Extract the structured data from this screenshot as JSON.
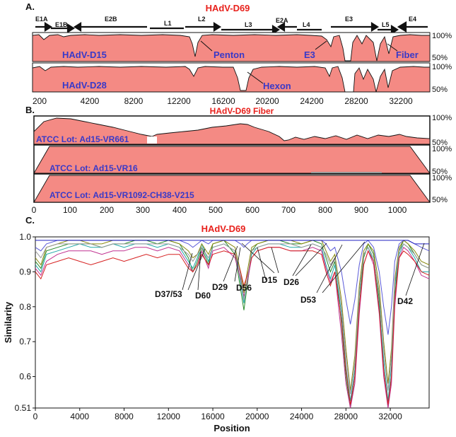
{
  "colors": {
    "fill": "#f48a84",
    "title": "#e8211c",
    "seq": "#3939c8",
    "ink": "#111111"
  },
  "panel_a": {
    "letter": "A.",
    "title": "HAdV-D69",
    "genes": [
      "E1A",
      "E1B",
      "E2B",
      "L1",
      "L2",
      "L3",
      "E2A",
      "L4",
      "E3",
      "L5",
      "E4"
    ],
    "tracks": [
      {
        "name": "HAdV-D15",
        "notes": [
          "Penton",
          "E3",
          "Fiber"
        ],
        "top": "100%",
        "bottom": "50%"
      },
      {
        "name": "HAdV-D28",
        "notes": [
          "Hexon"
        ],
        "top": "100%",
        "bottom": "50%"
      }
    ],
    "ticks": [
      "200",
      "4200",
      "8200",
      "12200",
      "16200",
      "20200",
      "24200",
      "28200",
      "32200"
    ]
  },
  "panel_b": {
    "letter": "B.",
    "title": "HAdV-D69 Fiber",
    "tracks": [
      {
        "name": "ATCC Lot: Ad15-VR661",
        "top": "100%",
        "bottom": "50%"
      },
      {
        "name": "ATCC Lot: Ad15-VR16",
        "top": "100%",
        "bottom": "50%"
      },
      {
        "name": "ATCC Lot: Ad15-VR1092-CH38-V215",
        "top": "100%",
        "bottom": "50%"
      }
    ],
    "ticks": [
      "0",
      "100",
      "200",
      "300",
      "400",
      "500",
      "600",
      "700",
      "800",
      "900",
      "1000"
    ]
  },
  "chart_data": {
    "type": "line",
    "letter": "C.",
    "title": "HAdV-D69",
    "xlabel": "Position",
    "ylabel": "Similarity",
    "xlim": [
      0,
      35500
    ],
    "ylim": [
      0.51,
      1.0
    ],
    "x_ticks": [
      "0",
      "4000",
      "8000",
      "12000",
      "16000",
      "20000",
      "24000",
      "28000",
      "32000"
    ],
    "y_ticks": [
      "1.0",
      "0.9",
      "0.8",
      "0.7",
      "0.6",
      "0.51"
    ],
    "annotations": [
      "D37/53",
      "D60",
      "D29",
      "D56",
      "D15",
      "D26",
      "D53",
      "D42"
    ],
    "x": [
      0,
      500,
      1000,
      2000,
      3000,
      4000,
      5000,
      6000,
      7000,
      8000,
      9000,
      10000,
      11000,
      12000,
      13000,
      13800,
      14200,
      14600,
      15000,
      15600,
      16000,
      17000,
      18000,
      18500,
      18800,
      19100,
      19500,
      20000,
      21000,
      22000,
      23000,
      24000,
      25000,
      25800,
      26200,
      26600,
      27000,
      27600,
      28000,
      28400,
      28800,
      29200,
      29600,
      30000,
      30500,
      31000,
      31400,
      31800,
      32100,
      32400,
      32800,
      33200,
      33600,
      34200,
      34800,
      35500
    ],
    "series": [
      {
        "values": [
          0.93,
          0.91,
          0.96,
          0.97,
          0.98,
          0.98,
          0.98,
          0.97,
          0.98,
          0.98,
          0.99,
          0.99,
          0.98,
          0.99,
          0.98,
          0.94,
          0.9,
          0.93,
          0.97,
          0.92,
          0.98,
          0.99,
          0.95,
          0.85,
          0.79,
          0.86,
          0.96,
          0.98,
          0.99,
          0.99,
          0.98,
          0.98,
          0.99,
          0.98,
          0.94,
          0.9,
          0.93,
          0.75,
          0.6,
          0.51,
          0.6,
          0.8,
          0.94,
          0.98,
          0.95,
          0.82,
          0.62,
          0.51,
          0.6,
          0.83,
          0.96,
          0.99,
          0.98,
          0.95,
          0.92,
          0.91
        ],
        "color": "#2a8a2a"
      },
      {
        "values": [
          0.92,
          0.9,
          0.95,
          0.96,
          0.97,
          0.98,
          0.97,
          0.97,
          0.98,
          0.97,
          0.98,
          0.98,
          0.97,
          0.98,
          0.97,
          0.93,
          0.91,
          0.94,
          0.98,
          0.93,
          0.97,
          0.98,
          0.96,
          0.87,
          0.81,
          0.88,
          0.95,
          0.97,
          0.98,
          0.98,
          0.97,
          0.97,
          0.98,
          0.97,
          0.92,
          0.88,
          0.92,
          0.78,
          0.63,
          0.53,
          0.62,
          0.83,
          0.95,
          0.97,
          0.93,
          0.8,
          0.65,
          0.53,
          0.63,
          0.86,
          0.95,
          0.98,
          0.97,
          0.94,
          0.9,
          0.9
        ],
        "color": "#1fa8a8"
      },
      {
        "values": [
          0.94,
          0.92,
          0.97,
          0.98,
          0.99,
          0.99,
          0.98,
          0.98,
          0.99,
          0.99,
          0.99,
          0.99,
          0.99,
          0.99,
          0.98,
          0.96,
          0.94,
          0.95,
          0.98,
          0.95,
          0.98,
          0.99,
          0.97,
          0.9,
          0.84,
          0.9,
          0.97,
          0.98,
          0.99,
          0.99,
          0.99,
          0.98,
          0.99,
          0.99,
          0.96,
          0.93,
          0.95,
          0.82,
          0.68,
          0.56,
          0.66,
          0.86,
          0.96,
          0.98,
          0.96,
          0.86,
          0.7,
          0.58,
          0.68,
          0.88,
          0.97,
          0.99,
          0.98,
          0.96,
          0.93,
          0.92
        ],
        "color": "#8a8a10"
      },
      {
        "values": [
          0.91,
          0.89,
          0.93,
          0.95,
          0.96,
          0.96,
          0.96,
          0.95,
          0.96,
          0.96,
          0.97,
          0.97,
          0.96,
          0.97,
          0.96,
          0.92,
          0.9,
          0.92,
          0.96,
          0.91,
          0.96,
          0.97,
          0.94,
          0.88,
          0.83,
          0.87,
          0.94,
          0.96,
          0.97,
          0.97,
          0.96,
          0.96,
          0.97,
          0.96,
          0.91,
          0.87,
          0.9,
          0.72,
          0.58,
          0.51,
          0.58,
          0.78,
          0.92,
          0.96,
          0.92,
          0.78,
          0.6,
          0.51,
          0.58,
          0.8,
          0.94,
          0.97,
          0.96,
          0.93,
          0.89,
          0.88
        ],
        "color": "#c03090"
      },
      {
        "values": [
          0.97,
          0.96,
          0.98,
          0.99,
          0.99,
          0.99,
          0.99,
          0.99,
          0.99,
          0.99,
          0.99,
          0.99,
          0.99,
          0.99,
          0.99,
          0.98,
          0.97,
          0.98,
          0.99,
          0.98,
          0.99,
          0.99,
          0.99,
          0.98,
          0.97,
          0.98,
          0.99,
          0.99,
          0.99,
          0.99,
          0.99,
          0.99,
          0.99,
          0.99,
          0.98,
          0.96,
          0.97,
          0.9,
          0.82,
          0.75,
          0.82,
          0.92,
          0.98,
          0.99,
          0.97,
          0.9,
          0.8,
          0.72,
          0.8,
          0.93,
          0.98,
          0.99,
          0.99,
          0.98,
          0.97,
          0.96
        ],
        "color": "#5a5ad8"
      },
      {
        "values": [
          0.9,
          0.88,
          0.92,
          0.93,
          0.94,
          0.93,
          0.92,
          0.93,
          0.94,
          0.93,
          0.94,
          0.95,
          0.94,
          0.95,
          0.95,
          0.91,
          0.9,
          0.92,
          0.95,
          0.92,
          0.95,
          0.96,
          0.95,
          0.9,
          0.86,
          0.89,
          0.94,
          0.96,
          0.97,
          0.97,
          0.96,
          0.96,
          0.96,
          0.95,
          0.9,
          0.86,
          0.9,
          0.76,
          0.62,
          0.52,
          0.6,
          0.8,
          0.92,
          0.96,
          0.93,
          0.79,
          0.62,
          0.52,
          0.6,
          0.82,
          0.94,
          0.96,
          0.95,
          0.93,
          0.9,
          0.89
        ],
        "color": "#d62020"
      },
      {
        "values": [
          0.96,
          0.94,
          0.97,
          0.98,
          0.98,
          0.98,
          0.98,
          0.97,
          0.98,
          0.98,
          0.98,
          0.98,
          0.98,
          0.98,
          0.97,
          0.95,
          0.93,
          0.95,
          0.97,
          0.94,
          0.97,
          0.98,
          0.96,
          0.89,
          0.82,
          0.88,
          0.96,
          0.97,
          0.98,
          0.98,
          0.98,
          0.97,
          0.98,
          0.97,
          0.95,
          0.92,
          0.94,
          0.8,
          0.66,
          0.55,
          0.64,
          0.84,
          0.95,
          0.97,
          0.94,
          0.84,
          0.68,
          0.56,
          0.66,
          0.87,
          0.96,
          0.98,
          0.97,
          0.95,
          0.92,
          0.91
        ],
        "color": "#9a9a9a"
      },
      {
        "values": [
          0.99,
          0.99,
          0.99,
          0.99,
          0.99,
          0.99,
          0.99,
          0.99,
          0.99,
          0.99,
          0.99,
          0.99,
          0.99,
          0.99,
          0.99,
          0.99,
          0.99,
          0.99,
          0.99,
          0.99,
          0.99,
          0.99,
          0.99,
          0.99,
          0.99,
          0.99,
          0.99,
          0.99,
          0.99,
          0.99,
          0.99,
          0.99,
          0.99,
          0.99,
          0.99,
          0.99,
          0.99,
          0.99,
          0.99,
          0.99,
          0.99,
          0.99,
          0.99,
          0.99,
          0.99,
          0.99,
          0.99,
          0.99,
          0.99,
          0.99,
          0.99,
          0.99,
          0.99,
          0.98,
          0.98,
          0.98
        ],
        "color": "#2020c0"
      }
    ]
  }
}
